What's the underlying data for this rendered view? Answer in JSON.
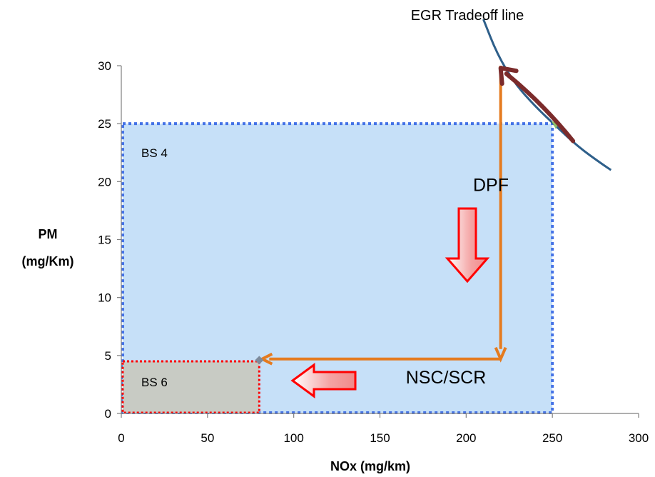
{
  "chart_data": {
    "type": "scatter",
    "title": "",
    "xlabel": "NOx (mg/km)",
    "ylabel_lines": [
      "PM",
      "(mg/Km)"
    ],
    "xlim": [
      0,
      300
    ],
    "ylim": [
      0,
      30
    ],
    "x_ticks": [
      0,
      50,
      100,
      150,
      200,
      250,
      300
    ],
    "y_ticks": [
      0,
      5,
      10,
      15,
      20,
      25,
      30
    ],
    "grid": false,
    "regions": [
      {
        "name": "BS 4",
        "x": [
          0,
          250
        ],
        "y": [
          0,
          25
        ],
        "fill": "#c6e0f8",
        "border": "#4472e6"
      },
      {
        "name": "BS 6",
        "x": [
          0,
          80
        ],
        "y": [
          0,
          4.5
        ],
        "fill": "#c8cbc4",
        "border": "#ff0000"
      }
    ],
    "tradeoff_curve": {
      "label": "EGR Tradeoff line",
      "color": "#2e5f8a",
      "points": [
        [
          210,
          34
        ],
        [
          218,
          31
        ],
        [
          228,
          28.5
        ],
        [
          240,
          26.5
        ],
        [
          252,
          24.8
        ],
        [
          265,
          23
        ],
        [
          278,
          21.6
        ],
        [
          284,
          21
        ]
      ]
    },
    "path": {
      "color": "#e57b1f",
      "points": [
        [
          220,
          30
        ],
        [
          220,
          4.7
        ],
        [
          80,
          4.7
        ]
      ]
    },
    "egr_arrow": {
      "color": "#7b2b2b",
      "from": [
        262,
        23.5
      ],
      "to": [
        220,
        29.8
      ]
    },
    "annotations": [
      {
        "text": "DPF",
        "x": 204,
        "y": 19.2
      },
      {
        "text": "NSC/SCR",
        "x": 165,
        "y": 2.6
      }
    ],
    "colors": {
      "dpf_arrow_fill": "#f7a8a8",
      "dpf_arrow_border": "#ff0000"
    }
  }
}
